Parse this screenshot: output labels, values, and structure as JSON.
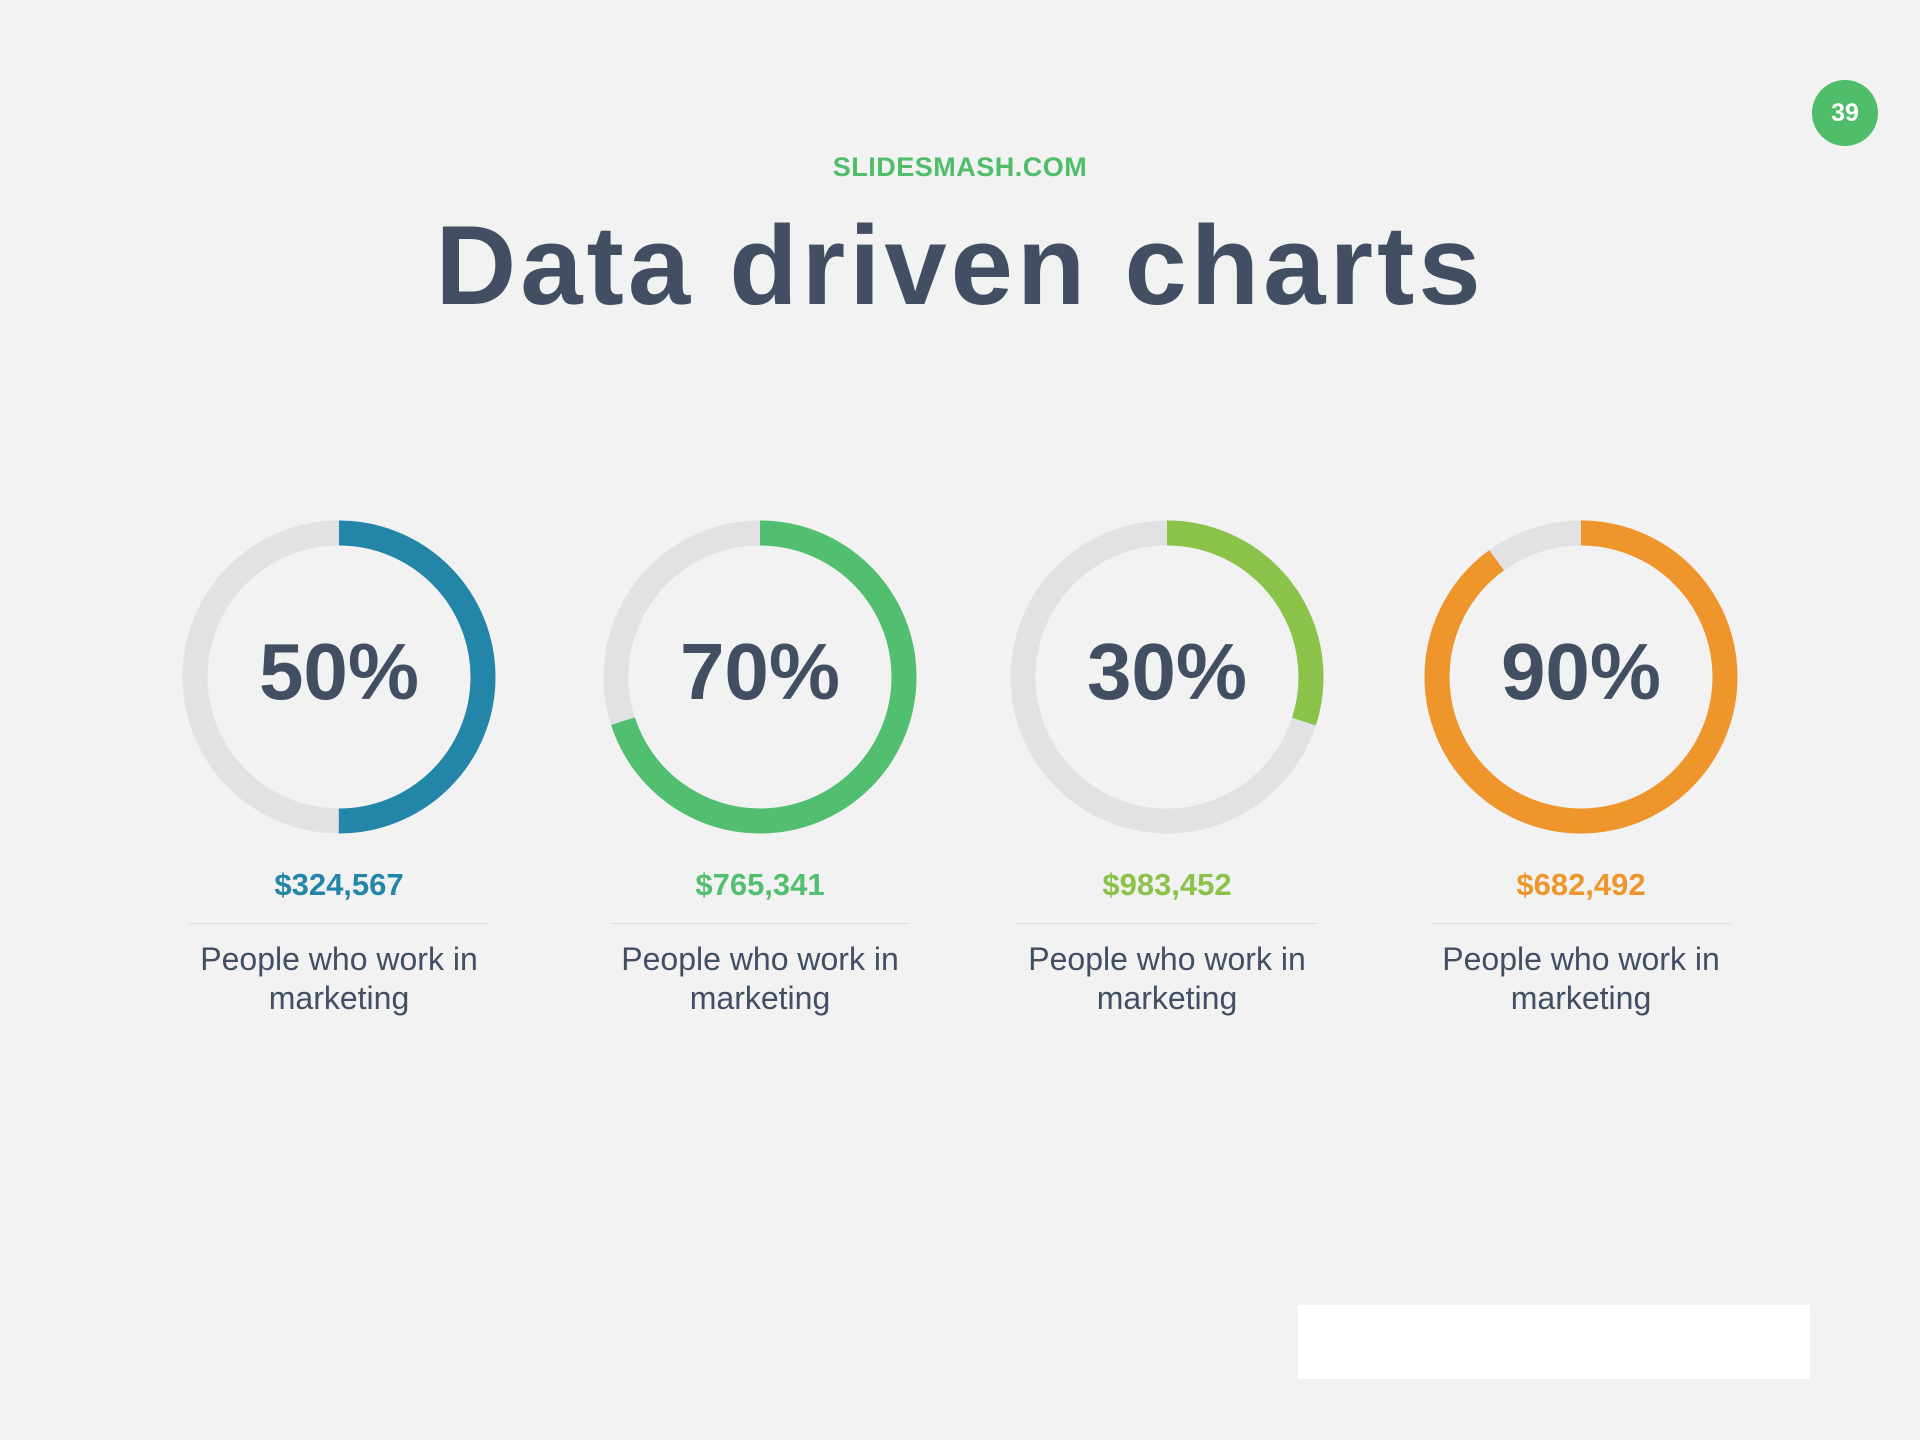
{
  "slide": {
    "page_number": "39",
    "brand": "SLIDESMASH.COM",
    "title": "Data driven charts"
  },
  "colors": {
    "background": "#f2f2f2",
    "track": "#e1e2e4",
    "text_dark": "#424f63",
    "brand_green": "#4fbd6a"
  },
  "chart_data": [
    {
      "type": "pie",
      "style": "donut",
      "percent": 50,
      "label": "50%",
      "amount": "$324,567",
      "description": "People who work in marketing",
      "color": "#2386a8"
    },
    {
      "type": "pie",
      "style": "donut",
      "percent": 70,
      "label": "70%",
      "amount": "$765,341",
      "description": "People who work in marketing",
      "color": "#52be6f"
    },
    {
      "type": "pie",
      "style": "donut",
      "percent": 30,
      "label": "30%",
      "amount": "$983,452",
      "description": "People who work in marketing",
      "color": "#8bc34a"
    },
    {
      "type": "pie",
      "style": "donut",
      "percent": 90,
      "label": "90%",
      "amount": "$682,492",
      "description": "People who work in marketing",
      "color": "#ee962b"
    }
  ]
}
